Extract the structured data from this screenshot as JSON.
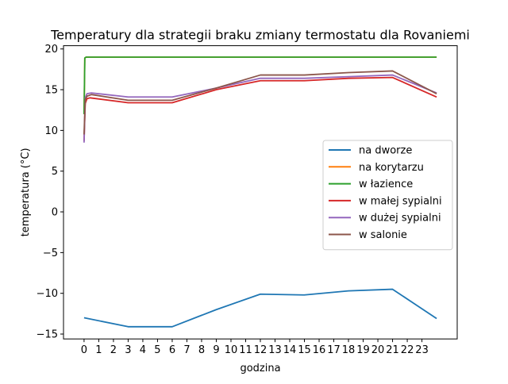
{
  "chart_data": {
    "type": "line",
    "title": "Temperatury dla strategii braku zmiany termostatu dla Rovaniemi",
    "xlabel": "godzina",
    "ylabel": "temperatura (°C)",
    "xlim": [
      -1.4,
      25.4
    ],
    "ylim": [
      -15.6,
      20.4
    ],
    "xticks": [
      0,
      1,
      2,
      3,
      4,
      5,
      6,
      7,
      8,
      9,
      10,
      11,
      12,
      13,
      14,
      15,
      16,
      17,
      18,
      19,
      20,
      21,
      22,
      23
    ],
    "xtick_labels": [
      "0",
      "1",
      "2",
      "3",
      "4",
      "5",
      "6",
      "7",
      "8",
      "9",
      "10",
      "11",
      "12",
      "13",
      "14",
      "15",
      "16",
      "17",
      "18",
      "19",
      "20",
      "21",
      "22",
      "23"
    ],
    "yticks": [
      -15,
      -10,
      -5,
      0,
      5,
      10,
      15,
      20
    ],
    "ytick_labels": [
      "−15",
      "−10",
      "−5",
      "0",
      "5",
      "10",
      "15",
      "20"
    ],
    "grid": false,
    "legend_position": "center-right",
    "series": [
      {
        "name": "na dworze",
        "color": "#1f77b4",
        "x": [
          0,
          3,
          6,
          9,
          12,
          15,
          18,
          21,
          24
        ],
        "y": [
          -13.0,
          -14.1,
          -14.1,
          -12.0,
          -10.1,
          -10.2,
          -9.7,
          -9.5,
          -13.1
        ]
      },
      {
        "name": "na korytarzu",
        "color": "#ff7f0e",
        "x": [
          0,
          0.05,
          0.15,
          0.3,
          3,
          6,
          9,
          12,
          15,
          18,
          21,
          24
        ],
        "y": [
          12.0,
          18.9,
          19.0,
          19.0,
          19.0,
          19.0,
          19.0,
          19.0,
          19.0,
          19.0,
          19.0,
          19.0
        ]
      },
      {
        "name": "w łazience",
        "color": "#2ca02c",
        "x": [
          0,
          0.05,
          0.15,
          0.3,
          3,
          6,
          9,
          12,
          15,
          18,
          21,
          24
        ],
        "y": [
          12.0,
          18.9,
          19.0,
          19.0,
          19.0,
          19.0,
          19.0,
          19.0,
          19.0,
          19.0,
          19.0,
          19.0
        ]
      },
      {
        "name": "w małej sypialni",
        "color": "#d62728",
        "x": [
          0,
          0.08,
          0.2,
          0.4,
          3,
          6,
          9,
          12,
          15,
          18,
          21,
          24
        ],
        "y": [
          8.7,
          13.3,
          13.9,
          14.0,
          13.4,
          13.4,
          15.0,
          16.1,
          16.1,
          16.4,
          16.5,
          14.1
        ]
      },
      {
        "name": "w dużej sypialni",
        "color": "#9467bd",
        "x": [
          0,
          0.08,
          0.2,
          0.5,
          3,
          6,
          9,
          12,
          15,
          18,
          21,
          24
        ],
        "y": [
          8.5,
          14.0,
          14.5,
          14.6,
          14.1,
          14.1,
          15.2,
          16.4,
          16.4,
          16.6,
          16.8,
          14.6
        ]
      },
      {
        "name": "w salonie",
        "color": "#8c564b",
        "x": [
          0,
          0.08,
          0.2,
          0.5,
          3,
          6,
          9,
          12,
          15,
          18,
          21,
          24
        ],
        "y": [
          9.5,
          13.8,
          14.2,
          14.4,
          13.7,
          13.7,
          15.2,
          16.8,
          16.8,
          17.1,
          17.3,
          14.5
        ]
      }
    ]
  }
}
